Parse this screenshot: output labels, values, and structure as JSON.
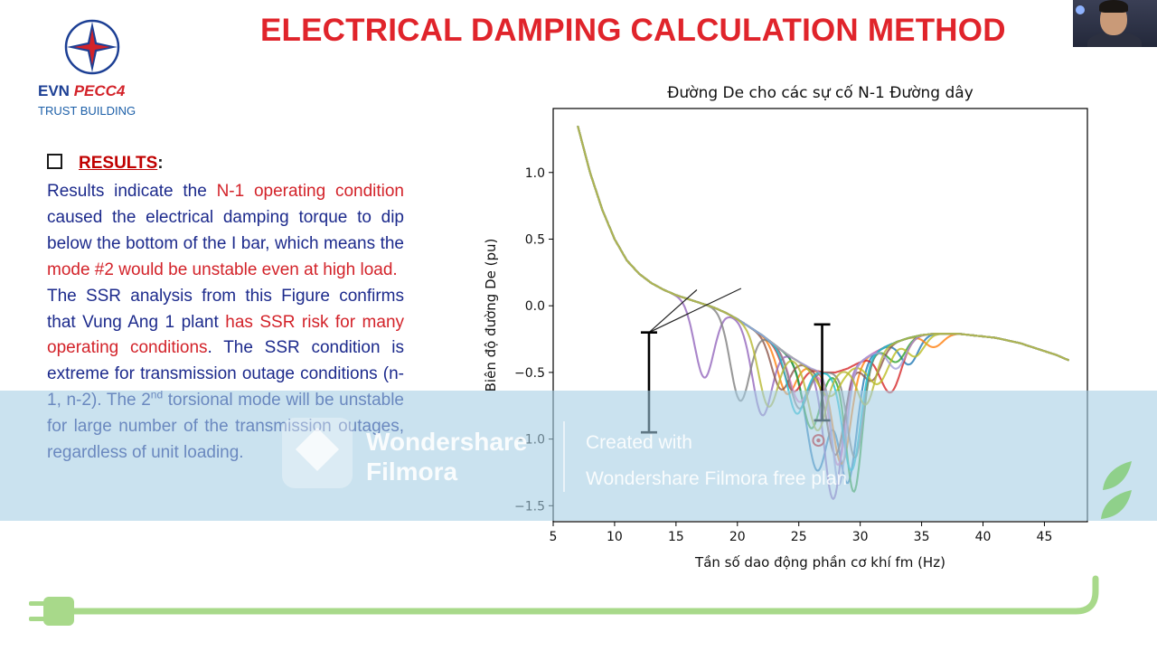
{
  "logo": {
    "brand_main": "EVN ",
    "brand_accent": "PECC4",
    "tagline": "TRUST BUILDING"
  },
  "slide": {
    "title": "ELECTRICAL DAMPING CALCULATION METHOD",
    "results_label": "RESULTS",
    "results_colon": ":",
    "para1": [
      {
        "t": "Results indicate the ",
        "red": false
      },
      {
        "t": "N-1 operating condition",
        "red": true
      },
      {
        "t": " caused the electrical damping torque to dip below the bottom of the I bar, which means the ",
        "red": false
      },
      {
        "t": "mode #2 would be unstable even at high load.",
        "red": true
      }
    ],
    "para2": [
      {
        "t": "The SSR analysis from this Figure confirms that Vung Ang 1 plant ",
        "red": false
      },
      {
        "t": "has SSR risk for many operating conditions",
        "red": true
      },
      {
        "t": ". The SSR condition is extreme for transmission outage conditions (n-1, n-2). The 2",
        "red": false
      },
      {
        "t": "nd",
        "red": false,
        "sup": true
      },
      {
        "t": " torsional mode will be unstable for large number of the transmission outages, regardless of unit loading.",
        "red": false
      }
    ]
  },
  "watermark": {
    "name_line1": "Wondershare",
    "name_line2": "Filmora",
    "note_line1": "Created with",
    "note_line2": "Wondershare Filmora free plan"
  },
  "colors": {
    "title_red": "#e0242b",
    "text_blue": "#1c2a8c",
    "brand_blue": "#1c3f94",
    "accent_green": "#a8d98a"
  },
  "chart_data": {
    "type": "line",
    "title": "Đường De cho các sự cố N-1 Đường dây",
    "xlabel": "Tần số dao động phần cơ khí fm (Hz)",
    "ylabel": "Biên độ đường De (pu)",
    "xlim": [
      5,
      48.5
    ],
    "ylim": [
      -1.62,
      1.48
    ],
    "xticks": [
      5,
      10,
      15,
      20,
      25,
      30,
      35,
      40,
      45
    ],
    "yticks": [
      1.0,
      0.5,
      0.0,
      -0.5,
      -1.0,
      -1.5
    ],
    "grid": false,
    "base_curve": {
      "x": [
        7,
        8,
        9,
        10,
        11,
        12,
        13,
        14,
        15,
        16,
        17,
        18,
        19,
        20,
        21,
        22,
        23,
        24,
        25,
        26,
        27,
        28,
        29,
        30,
        31,
        32,
        33,
        34,
        35,
        36,
        37,
        38,
        39,
        40,
        41,
        42,
        43,
        44,
        45,
        46,
        47
      ],
      "y": [
        1.35,
        1.0,
        0.72,
        0.5,
        0.34,
        0.24,
        0.17,
        0.12,
        0.08,
        0.05,
        0.02,
        -0.01,
        -0.05,
        -0.1,
        -0.16,
        -0.22,
        -0.29,
        -0.36,
        -0.42,
        -0.47,
        -0.5,
        -0.5,
        -0.47,
        -0.42,
        -0.36,
        -0.31,
        -0.27,
        -0.24,
        -0.22,
        -0.21,
        -0.21,
        -0.21,
        -0.22,
        -0.23,
        -0.24,
        -0.26,
        -0.28,
        -0.31,
        -0.34,
        -0.37,
        -0.41
      ]
    },
    "series": [
      {
        "color": "#1f77b4",
        "dips": [
          [
            26.5,
            -0.75,
            1.2
          ],
          [
            29.0,
            -0.85,
            1.0
          ],
          [
            34.0,
            -0.2,
            1.0
          ]
        ]
      },
      {
        "color": "#ff7f0e",
        "dips": [
          [
            24.0,
            -0.3,
            1.0
          ],
          [
            28.5,
            -0.7,
            1.0
          ],
          [
            36.0,
            -0.1,
            1.0
          ]
        ]
      },
      {
        "color": "#2ca02c",
        "dips": [
          [
            26.0,
            -0.45,
            1.0
          ],
          [
            29.5,
            -0.95,
            0.9
          ],
          [
            33.0,
            -0.15,
            1.0
          ]
        ]
      },
      {
        "color": "#d62728",
        "dips": [
          [
            24.5,
            -0.25,
            1.0
          ],
          [
            32.5,
            -0.36,
            1.2
          ]
        ]
      },
      {
        "color": "#9467bd",
        "dips": [
          [
            17.3,
            -0.55,
            1.1
          ],
          [
            22.0,
            -0.6,
            1.1
          ],
          [
            27.8,
            -0.95,
            1.0
          ]
        ]
      },
      {
        "color": "#8c564b",
        "dips": [
          [
            23.5,
            -0.3,
            1.0
          ],
          [
            28.0,
            -0.62,
            1.0
          ],
          [
            31.0,
            -0.2,
            1.0
          ]
        ]
      },
      {
        "color": "#e377c2",
        "dips": [
          [
            25.0,
            -0.3,
            1.0
          ],
          [
            28.2,
            -0.7,
            0.9
          ]
        ]
      },
      {
        "color": "#7f7f7f",
        "dips": [
          [
            20.2,
            -0.6,
            1.1
          ],
          [
            25.0,
            -0.35,
            1.0
          ],
          [
            29.6,
            -0.7,
            0.9
          ]
        ]
      },
      {
        "color": "#bcbd22",
        "dips": [
          [
            27.5,
            -0.18,
            1.2
          ],
          [
            31.5,
            -0.25,
            1.2
          ],
          [
            34.5,
            -0.15,
            1.0
          ]
        ]
      },
      {
        "color": "#17becf",
        "dips": [
          [
            24.8,
            -0.4,
            1.0
          ],
          [
            29.3,
            -0.78,
            1.0
          ]
        ]
      },
      {
        "color": "#a0a0d8",
        "dips": [
          [
            28.3,
            -0.85,
            0.8
          ],
          [
            33.0,
            -0.2,
            1.0
          ]
        ]
      },
      {
        "color": "#b7b832",
        "dips": [
          [
            22.5,
            -0.5,
            1.1
          ],
          [
            26.5,
            -0.45,
            1.0
          ],
          [
            30.5,
            -0.35,
            1.0
          ]
        ]
      }
    ],
    "i_bars": [
      {
        "x": 12.8,
        "y_top": -0.2,
        "y_bottom": -0.95
      },
      {
        "x": 26.9,
        "y_top": -0.14,
        "y_bottom": -0.86
      }
    ],
    "annotation_lines": [
      {
        "from": [
          12.8,
          -0.2
        ],
        "to": [
          16.7,
          0.12
        ]
      },
      {
        "from": [
          12.8,
          -0.2
        ],
        "to": [
          20.3,
          0.13
        ]
      }
    ],
    "marker": {
      "x": 26.6,
      "y": -1.01,
      "color": "#d62728"
    }
  }
}
